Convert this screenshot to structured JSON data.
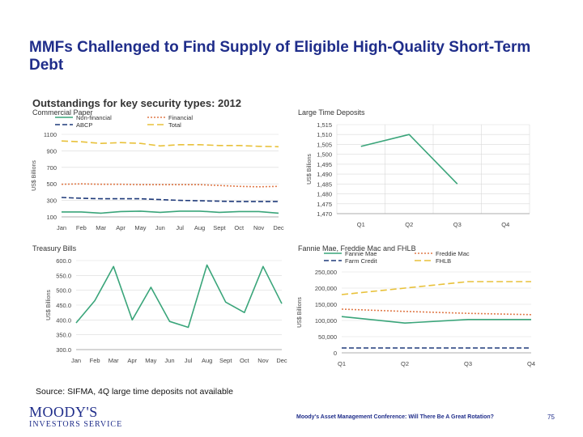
{
  "slide": {
    "title": "MMFs Challenged to Find Supply of Eligible High-Quality Short-Term Debt",
    "main_heading": "Outstandings for key security types:  2012",
    "source": "Source:  SIFMA, 4Q large time deposits not available",
    "logo_main": "MOODY'S",
    "logo_sub": "INVESTORS SERVICE",
    "footer": "Moody's Asset Management Conference: Will There Be A Great Rotation?",
    "page_number": "75"
  },
  "chart_data": [
    {
      "type": "line",
      "title": "Commercial Paper",
      "ylabel": "US$ Billions",
      "ylim": [
        100,
        1100
      ],
      "yticks": [
        100,
        300,
        500,
        700,
        900,
        1100
      ],
      "ytick_labels": [
        "100",
        "300",
        "500",
        "700",
        "900",
        "1100"
      ],
      "categories": [
        "Jan",
        "Feb",
        "Mar",
        "Apr",
        "May",
        "Jun",
        "Jul",
        "Aug",
        "Sept",
        "Oct",
        "Nov",
        "Dec"
      ],
      "legend": [
        "Non-financial",
        "Financial",
        "ABCP",
        "Total"
      ],
      "series": [
        {
          "name": "Non-financial",
          "color": "#3aa57a",
          "dash": "",
          "values": [
            160,
            160,
            145,
            165,
            170,
            155,
            170,
            170,
            155,
            165,
            165,
            145
          ]
        },
        {
          "name": "Financial",
          "color": "#e07a4a",
          "dash": "2,2",
          "values": [
            495,
            500,
            495,
            495,
            490,
            490,
            490,
            490,
            480,
            470,
            465,
            470
          ]
        },
        {
          "name": "ABCP",
          "color": "#1f3a7a",
          "dash": "6,3",
          "values": [
            335,
            325,
            320,
            320,
            320,
            310,
            300,
            295,
            290,
            285,
            285,
            285
          ]
        },
        {
          "name": "Total",
          "color": "#e8c13a",
          "dash": "8,4",
          "values": [
            1020,
            1010,
            990,
            1000,
            990,
            960,
            975,
            975,
            965,
            965,
            955,
            950
          ]
        }
      ]
    },
    {
      "type": "line",
      "title": "Large Time Deposits",
      "ylabel": "US$ Billions",
      "ylim": [
        1470,
        1515
      ],
      "yticks": [
        1470,
        1475,
        1480,
        1485,
        1490,
        1495,
        1500,
        1505,
        1510,
        1515
      ],
      "ytick_labels": [
        "1,470",
        "1,475",
        "1,480",
        "1,485",
        "1,490",
        "1,495",
        "1,500",
        "1,505",
        "1,510",
        "1,515"
      ],
      "categories": [
        "Q1",
        "Q2",
        "Q3",
        "Q4"
      ],
      "series": [
        {
          "name": "Large Time Deposits",
          "color": "#3aa57a",
          "dash": "",
          "values": [
            1504,
            1510,
            1485,
            null
          ]
        }
      ]
    },
    {
      "type": "line",
      "title": "Treasury Bills",
      "ylabel": "US$ Billions",
      "ylim": [
        300,
        600
      ],
      "yticks": [
        300,
        350,
        400,
        450,
        500,
        550,
        600
      ],
      "ytick_labels": [
        "300.0",
        "350.0",
        "400.0",
        "450.0",
        "500.0",
        "550.0",
        "600.0"
      ],
      "categories": [
        "Jan",
        "Feb",
        "Mar",
        "Apr",
        "May",
        "Jun",
        "Jul",
        "Aug",
        "Sept",
        "Oct",
        "Nov",
        "Dec"
      ],
      "series": [
        {
          "name": "Treasury Bills",
          "color": "#3aa57a",
          "dash": "",
          "values": [
            390,
            465,
            580,
            400,
            510,
            395,
            375,
            585,
            460,
            425,
            580,
            455
          ]
        }
      ]
    },
    {
      "type": "line",
      "title": "Fannie Mae, Freddie Mac and FHLB",
      "ylabel": "US$ Billions",
      "ylim": [
        0,
        250000
      ],
      "yticks": [
        0,
        50000,
        100000,
        150000,
        200000,
        250000
      ],
      "ytick_labels": [
        "0",
        "50,000",
        "100,000",
        "150,000",
        "200,000",
        "250,000"
      ],
      "categories": [
        "Q1",
        "Q2",
        "Q3",
        "Q4"
      ],
      "legend": [
        "Fannie Mae",
        "Freddie Mac",
        "Farm Credit",
        "FHLB"
      ],
      "series": [
        {
          "name": "Fannie Mae",
          "color": "#3aa57a",
          "dash": "",
          "values": [
            112000,
            92000,
            103000,
            103000
          ]
        },
        {
          "name": "Freddie Mac",
          "color": "#e07a4a",
          "dash": "2,2",
          "values": [
            135000,
            128000,
            122000,
            118000
          ]
        },
        {
          "name": "Farm Credit",
          "color": "#1f3a7a",
          "dash": "6,3",
          "values": [
            15000,
            15000,
            15000,
            15000
          ]
        },
        {
          "name": "FHLB",
          "color": "#e8c13a",
          "dash": "8,4",
          "values": [
            180000,
            200000,
            220000,
            220000
          ]
        }
      ]
    }
  ]
}
